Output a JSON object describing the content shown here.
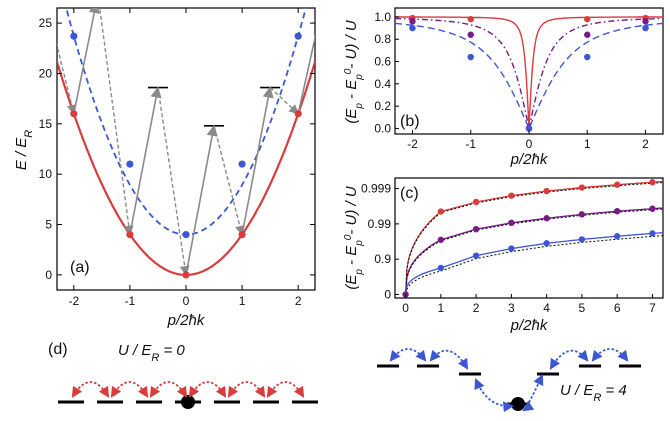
{
  "chart_data": [
    {
      "id": "a",
      "type": "line",
      "panel_label": "(a)",
      "xlabel": "p/2ħk",
      "ylabel": "E / E_R",
      "xlim": [
        -2.3,
        2.3
      ],
      "ylim": [
        -1.5,
        26.5
      ],
      "xticks": [
        "-2",
        "-1",
        "0",
        "1",
        "2"
      ],
      "yticks": [
        "0",
        "5",
        "10",
        "15",
        "20",
        "25"
      ],
      "series": [
        {
          "style": "solid",
          "color": "#d83c3c",
          "x": [
            -2,
            -1,
            0,
            1,
            2
          ],
          "y": [
            16,
            4,
            0,
            4,
            16
          ]
        },
        {
          "style": "dashed",
          "color": "#3d57d4",
          "x": [
            -2,
            -1,
            0,
            1,
            2
          ],
          "y": [
            23.7,
            11,
            4,
            11,
            23.7
          ]
        }
      ],
      "levels": [
        {
          "x": -0.5,
          "y": 18.6
        },
        {
          "x": 0.5,
          "y": 14.8
        },
        {
          "x": 1.5,
          "y": 18.6
        }
      ],
      "transitions_solid": [
        [
          -2,
          16,
          -1.6,
          27
        ],
        [
          -1,
          4,
          -0.5,
          18.6
        ],
        [
          0,
          0,
          0.5,
          14.8
        ],
        [
          1,
          4,
          1.5,
          18.6
        ],
        [
          2,
          16,
          2.4,
          26
        ]
      ],
      "transitions_dashed": [
        [
          -1.55,
          27,
          -1,
          4
        ],
        [
          -0.5,
          18.6,
          0,
          0
        ],
        [
          0.5,
          14.8,
          1,
          4
        ],
        [
          1.5,
          18.6,
          2,
          16
        ],
        [
          -2.4,
          25,
          -2,
          16
        ]
      ]
    },
    {
      "id": "b",
      "type": "line",
      "panel_label": "(b)",
      "xlabel": "p/2ħk",
      "ylabel": "(E_p - E_p^0 - U) / U",
      "xlim": [
        -2.3,
        2.3
      ],
      "ylim": [
        -0.05,
        1.08
      ],
      "xticks": [
        "-2",
        "-1",
        "0",
        "1",
        "2"
      ],
      "yticks": [
        "0.0",
        "0.2",
        "0.4",
        "0.6",
        "0.8",
        "1.0"
      ],
      "series": [
        {
          "color": "#d83c3c",
          "style": "solid",
          "x": [
            -2,
            -1,
            0,
            1,
            2
          ],
          "y": [
            0.99,
            0.98,
            0,
            0.98,
            0.99
          ]
        },
        {
          "color": "#7a1a86",
          "style": "dashdot",
          "x": [
            -2,
            -1,
            0,
            1,
            2
          ],
          "y": [
            0.96,
            0.84,
            0,
            0.84,
            0.96
          ]
        },
        {
          "color": "#3d57d4",
          "style": "dashed",
          "x": [
            -2,
            -1,
            0,
            1,
            2
          ],
          "y": [
            0.9,
            0.64,
            0,
            0.64,
            0.9
          ]
        }
      ]
    },
    {
      "id": "c",
      "type": "line",
      "panel_label": "(c)",
      "xlabel": "p/2ħk",
      "ylabel": "(E_p - E_p^0 - U) / U",
      "xlim": [
        -0.3,
        7.3
      ],
      "ylim": [
        -0.1,
        3.3
      ],
      "y_scale": "log-like",
      "xticks": [
        "0",
        "1",
        "2",
        "3",
        "4",
        "5",
        "6",
        "7"
      ],
      "yticks": [
        "0",
        "0.9",
        "0.99",
        "0.999"
      ],
      "series": [
        {
          "color": "#d83c3c",
          "x": [
            1,
            2,
            3,
            4,
            5,
            6,
            7
          ],
          "y": [
            2.35,
            2.62,
            2.8,
            2.93,
            3.03,
            3.11,
            3.18
          ]
        },
        {
          "color": "#7a1a86",
          "x": [
            1,
            2,
            3,
            4,
            5,
            6,
            7
          ],
          "y": [
            1.55,
            1.85,
            2.03,
            2.16,
            2.27,
            2.36,
            2.43
          ]
        },
        {
          "color": "#3d57d4",
          "x": [
            1,
            2,
            3,
            4,
            5,
            6,
            7
          ],
          "y": [
            0.75,
            1.1,
            1.3,
            1.45,
            1.56,
            1.65,
            1.73
          ]
        }
      ]
    }
  ],
  "panel_d": {
    "label": "(d)",
    "left_caption": "U / E_R = 0",
    "right_caption": "U / E_R = 4"
  },
  "colors": {
    "red": "#d83c3c",
    "blue": "#3d57d4",
    "purple": "#7a1a86",
    "gray": "#8a8a8a"
  }
}
